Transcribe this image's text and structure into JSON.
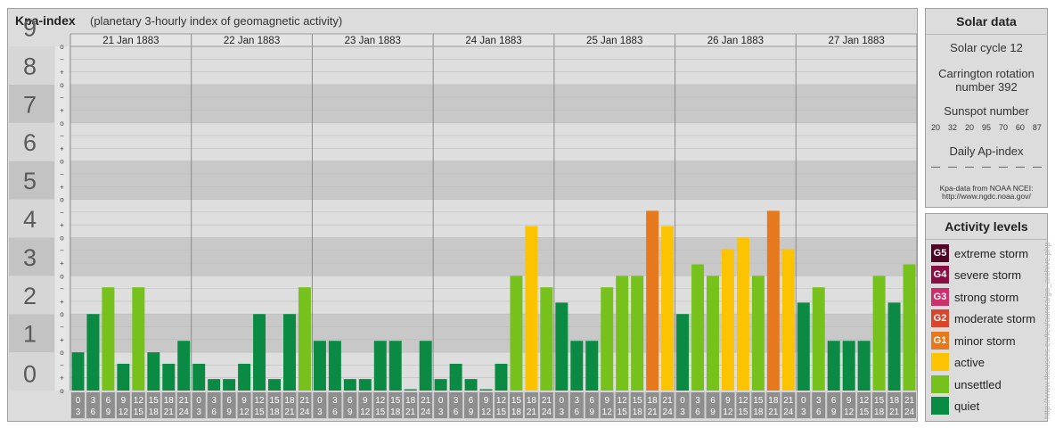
{
  "header": {
    "title": "Kpa-index",
    "subtitle": "(planetary 3-hourly index of geomagnetic activity)"
  },
  "chart_data": {
    "type": "bar",
    "title": "Kpa-index",
    "subtitle": "(planetary 3-hourly index of geomagnetic activity)",
    "ylim": [
      0,
      9
    ],
    "y_ticks": [
      "0",
      "1",
      "2",
      "3",
      "4",
      "5",
      "6",
      "7",
      "8",
      "9"
    ],
    "minor_tick_labels": [
      "o",
      "+",
      "−"
    ],
    "days": [
      "21 Jan 1883",
      "22 Jan 1883",
      "23 Jan 1883",
      "24 Jan 1883",
      "25 Jan 1883",
      "26 Jan 1883",
      "27 Jan 1883"
    ],
    "interval_labels": [
      [
        "0",
        "3"
      ],
      [
        "3",
        "6"
      ],
      [
        "6",
        "9"
      ],
      [
        "9",
        "12"
      ],
      [
        "12",
        "15"
      ],
      [
        "15",
        "18"
      ],
      [
        "18",
        "21"
      ],
      [
        "21",
        "24"
      ]
    ],
    "values": [
      [
        1.0,
        2.0,
        2.7,
        0.7,
        2.7,
        1.0,
        0.7,
        1.3
      ],
      [
        0.7,
        0.3,
        0.3,
        0.7,
        2.0,
        0.3,
        2.0,
        2.7
      ],
      [
        1.3,
        1.3,
        0.3,
        0.3,
        1.3,
        1.3,
        0.0,
        1.3
      ],
      [
        0.3,
        0.7,
        0.3,
        0.0,
        0.7,
        3.0,
        4.3,
        2.7
      ],
      [
        2.3,
        1.3,
        1.3,
        2.7,
        3.0,
        3.0,
        4.7,
        4.3
      ],
      [
        2.0,
        3.3,
        3.0,
        3.7,
        4.0,
        3.0,
        4.7,
        3.7
      ],
      [
        2.3,
        2.7,
        1.3,
        1.3,
        1.3,
        3.0,
        2.3,
        3.3
      ]
    ],
    "grid": true,
    "colors": {
      "quiet": "#0a8a43",
      "unsettled": "#77c11d",
      "active": "#fcc300",
      "minor_storm": "#e6791e",
      "moderate_storm": "#d9442a",
      "strong_storm": "#cc2f6b",
      "severe_storm": "#8a0e44",
      "extreme_storm": "#4f0523"
    }
  },
  "solar_data": {
    "title": "Solar data",
    "solar_cycle": "Solar cycle 12",
    "carrington_line1": "Carrington rotation",
    "carrington_line2": "number 392",
    "sunspot_title": "Sunspot number",
    "sunspot_values": [
      "20",
      "32",
      "20",
      "95",
      "70",
      "60",
      "87"
    ],
    "ap_title": "Daily Ap-index",
    "ap_values": [
      "—",
      "—",
      "—",
      "—",
      "—",
      "—",
      "—"
    ],
    "source_line1": "Kpa-data from NOAA NCEI:",
    "source_line2": "http://www.ngdc.noaa.gov/"
  },
  "activity_levels": {
    "title": "Activity levels",
    "items": [
      {
        "badge": "G5",
        "label": "extreme storm",
        "color": "#4f0523"
      },
      {
        "badge": "G4",
        "label": "severe storm",
        "color": "#8a0e44"
      },
      {
        "badge": "G3",
        "label": "strong storm",
        "color": "#cc2f6b"
      },
      {
        "badge": "G2",
        "label": "moderate storm",
        "color": "#d9442a"
      },
      {
        "badge": "G1",
        "label": "minor storm",
        "color": "#e6791e"
      },
      {
        "badge": "",
        "label": "active",
        "color": "#fcc300"
      },
      {
        "badge": "",
        "label": "unsettled",
        "color": "#77c11d"
      },
      {
        "badge": "",
        "label": "quiet",
        "color": "#0a8a43"
      }
    ]
  },
  "watermark": "http://www.theusers.eu/teu/aurora/go_archive.php"
}
